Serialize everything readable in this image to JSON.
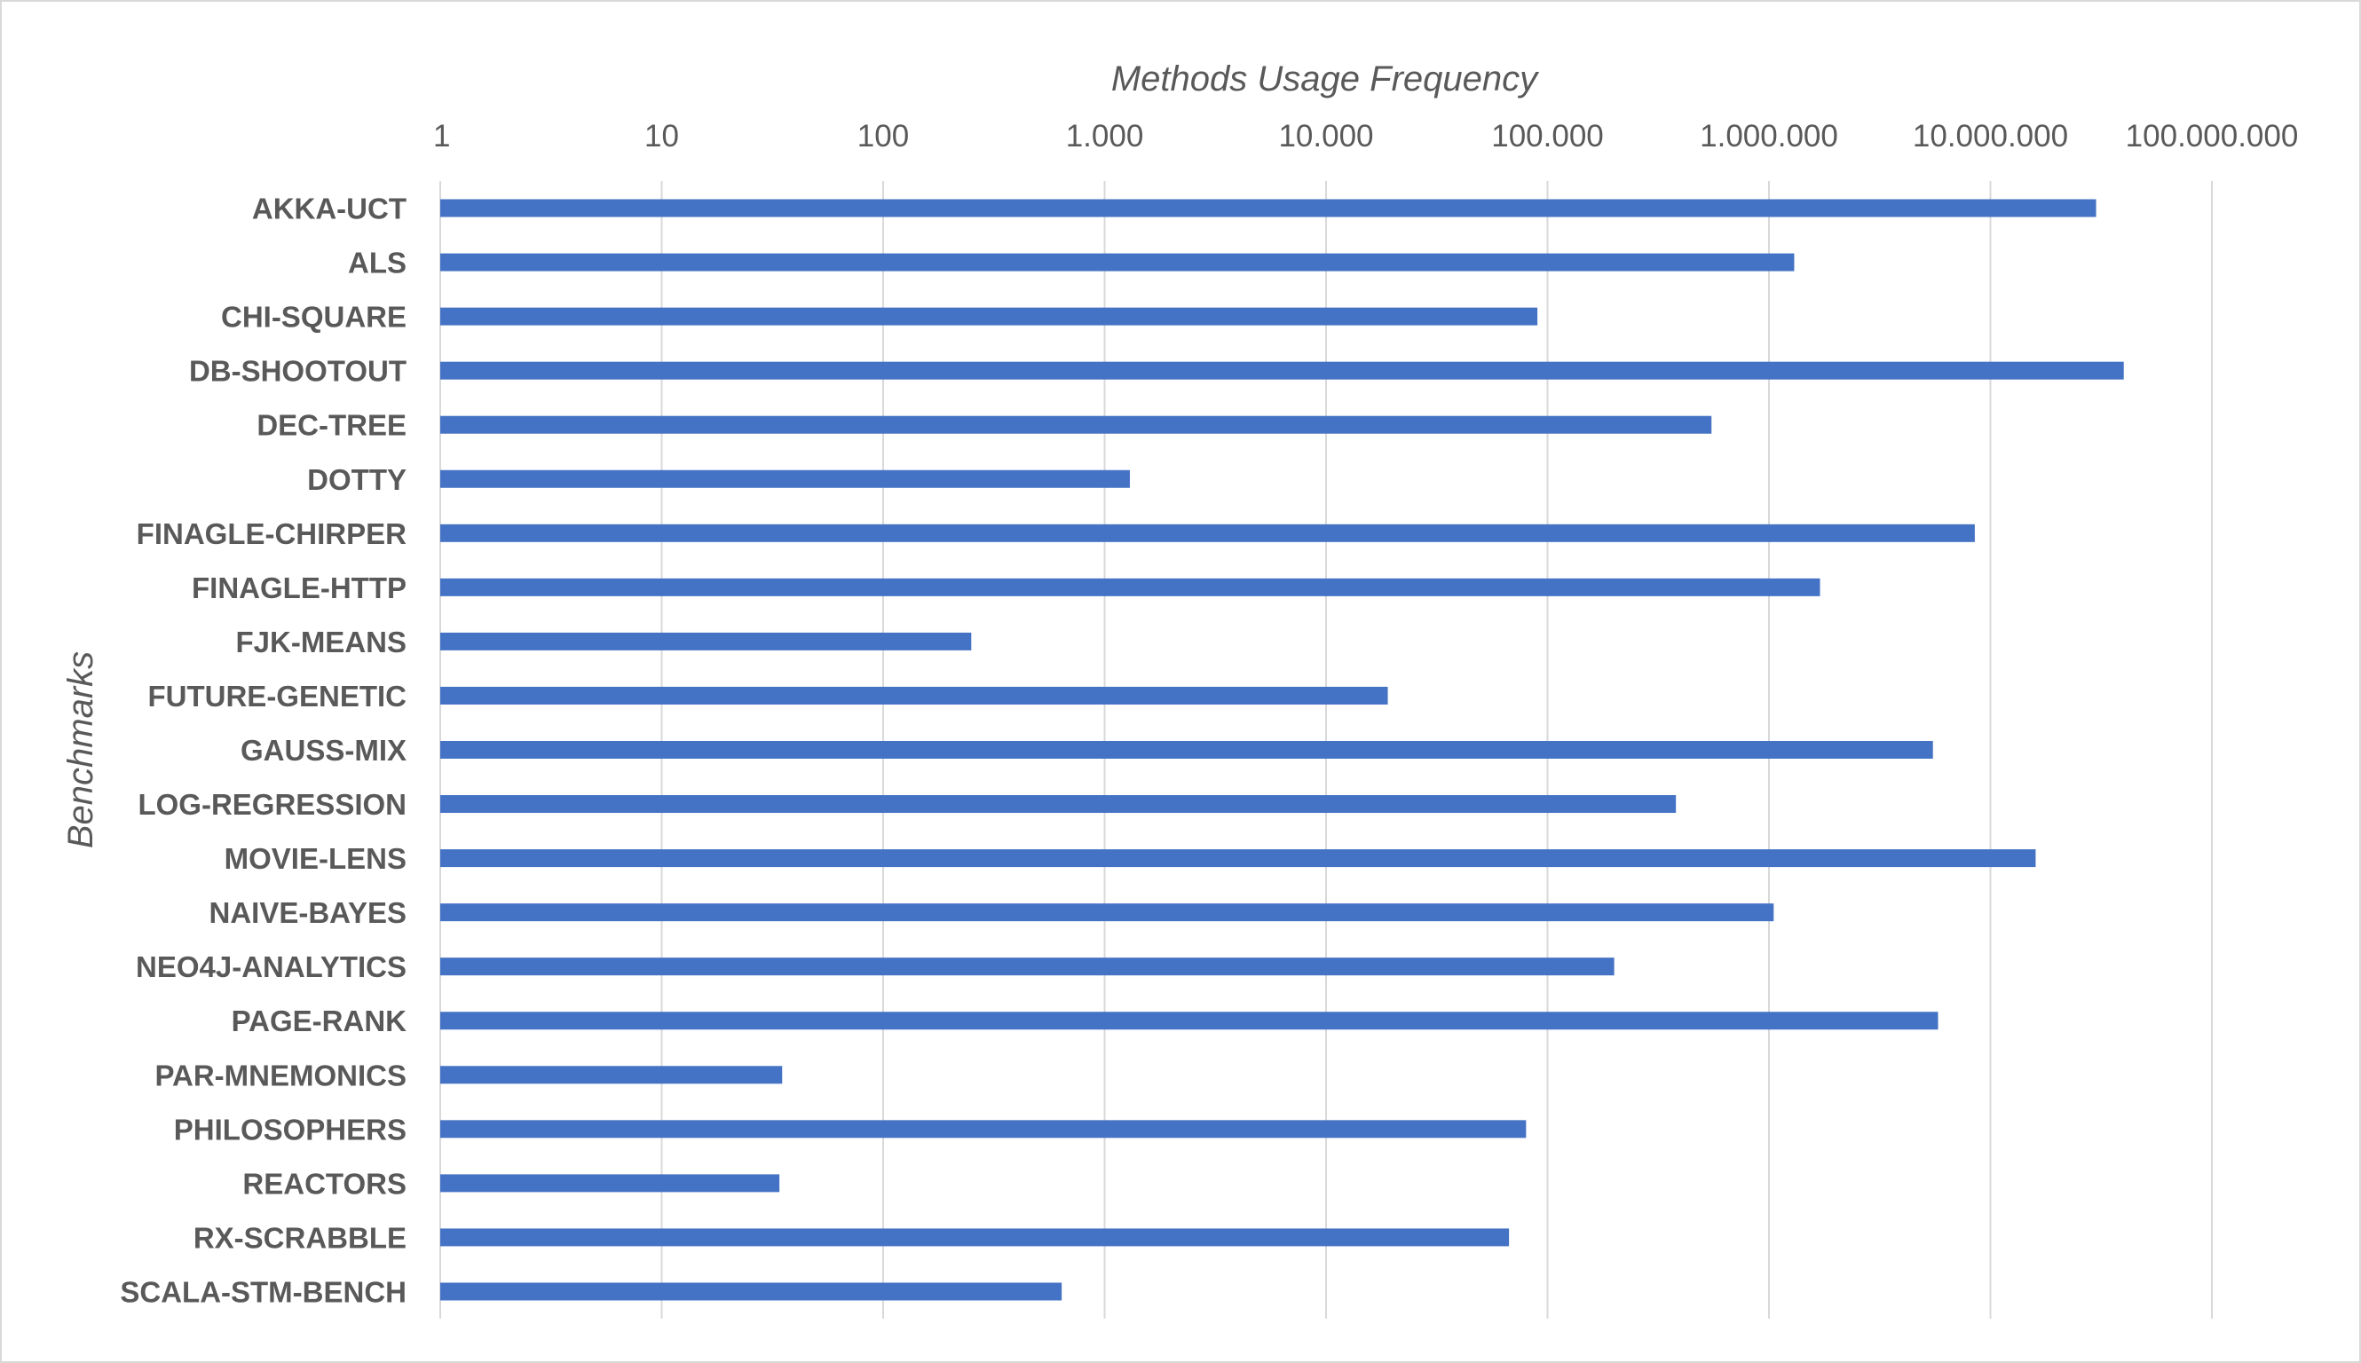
{
  "chart_data": {
    "type": "bar",
    "orientation": "horizontal",
    "title": "",
    "xlabel": "Methods Usage Frequency",
    "ylabel": "Benchmarks",
    "x_scale": "log10",
    "xlim": [
      1,
      100000000
    ],
    "x_axis_position": "top",
    "grid": true,
    "x_tick_labels": [
      "1",
      "10",
      "100",
      "1.000",
      "10.000",
      "100.000",
      "1.000.000",
      "10.000.000",
      "100.000.000"
    ],
    "categories": [
      "AKKA-UCT",
      "ALS",
      "CHI-SQUARE",
      "DB-SHOOTOUT",
      "DEC-TREE",
      "DOTTY",
      "FINAGLE-CHIRPER",
      "FINAGLE-HTTP",
      "FJK-MEANS",
      "FUTURE-GENETIC",
      "GAUSS-MIX",
      "LOG-REGRESSION",
      "MOVIE-LENS",
      "NAIVE-BAYES",
      "NEO4J-ANALYTICS",
      "PAGE-RANK",
      "PAR-MNEMONICS",
      "PHILOSOPHERS",
      "REACTORS",
      "RX-SCRABBLE",
      "SCALA-STM-BENCH"
    ],
    "values": [
      30000000,
      1300000,
      90000,
      40000000,
      550000,
      1300,
      8500000,
      1700000,
      250,
      19000,
      5500000,
      380000,
      16000000,
      1050000,
      200000,
      5800000,
      35,
      80000,
      34,
      67000,
      640
    ],
    "colors": {
      "bar": "#4472c4",
      "grid": "#d9d9d9",
      "text": "#595959"
    }
  }
}
